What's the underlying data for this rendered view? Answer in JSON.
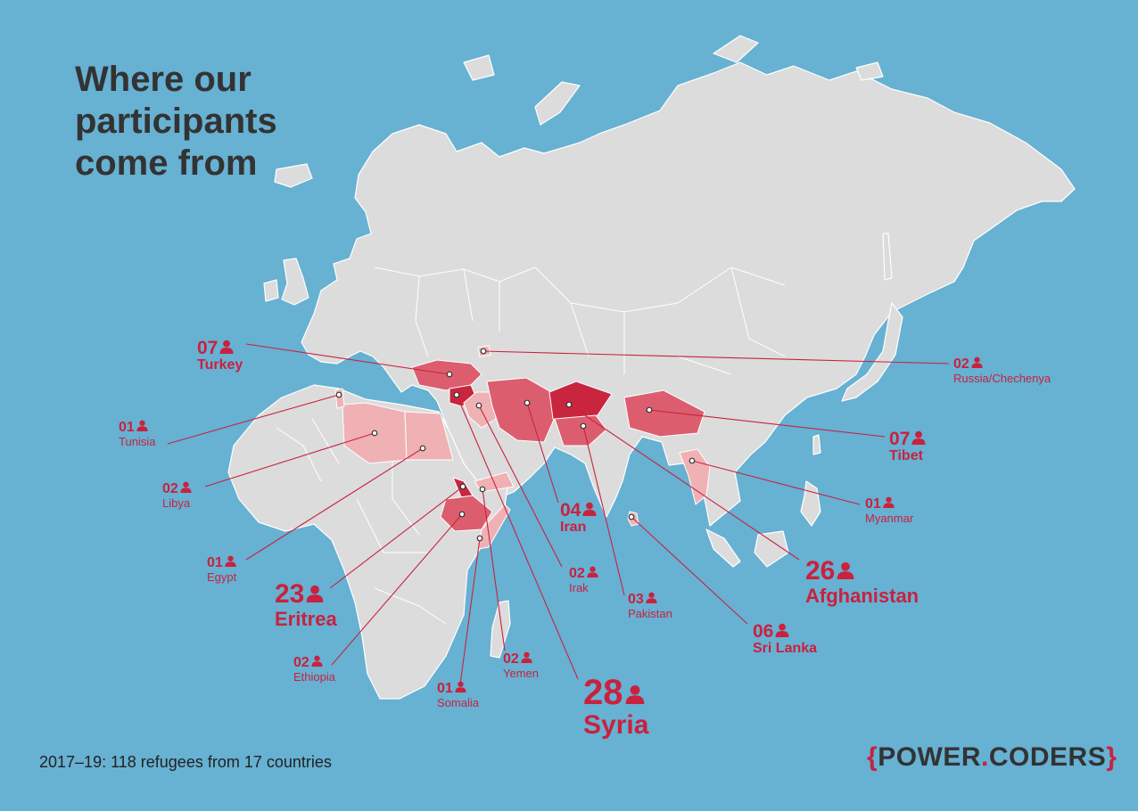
{
  "title": "Where our participants come from",
  "footer": "2017–19: 118 refugees from 17 countries",
  "logo": {
    "brace_open": "{",
    "word1": "POWER",
    "dot": ".",
    "word2": "CODERS",
    "brace_close": "}"
  },
  "colors": {
    "ocean": "#67b1d3",
    "land": "#dcdcdc",
    "accent": "#c8223e",
    "high": "#c9253f",
    "mid": "#dc5e6e",
    "low": "#f0b1b5"
  },
  "icon": "person-icon",
  "countries": [
    {
      "id": "turkey",
      "number": "07",
      "name": "Turkey",
      "count": 7
    },
    {
      "id": "russia",
      "number": "02",
      "name": "Russia/Chechenya",
      "count": 2
    },
    {
      "id": "tunisia",
      "number": "01",
      "name": "Tunisia",
      "count": 1
    },
    {
      "id": "libya",
      "number": "02",
      "name": "Libya",
      "count": 2
    },
    {
      "id": "egypt",
      "number": "01",
      "name": "Egypt",
      "count": 1
    },
    {
      "id": "eritrea",
      "number": "23",
      "name": "Eritrea",
      "count": 23
    },
    {
      "id": "ethiopia",
      "number": "02",
      "name": "Ethiopia",
      "count": 2
    },
    {
      "id": "somalia",
      "number": "01",
      "name": "Somalia",
      "count": 1
    },
    {
      "id": "yemen",
      "number": "02",
      "name": "Yemen",
      "count": 2
    },
    {
      "id": "syria",
      "number": "28",
      "name": "Syria",
      "count": 28
    },
    {
      "id": "irak",
      "number": "02",
      "name": "Irak",
      "count": 2
    },
    {
      "id": "iran",
      "number": "04",
      "name": "Iran",
      "count": 4
    },
    {
      "id": "pakistan",
      "number": "03",
      "name": "Pakistan",
      "count": 3
    },
    {
      "id": "srilanka",
      "number": "06",
      "name": "Sri Lanka",
      "count": 6
    },
    {
      "id": "afghanistan",
      "number": "26",
      "name": "Afghanistan",
      "count": 26
    },
    {
      "id": "myanmar",
      "number": "01",
      "name": "Myanmar",
      "count": 1
    },
    {
      "id": "tibet",
      "number": "07",
      "name": "Tibet",
      "count": 7
    }
  ]
}
